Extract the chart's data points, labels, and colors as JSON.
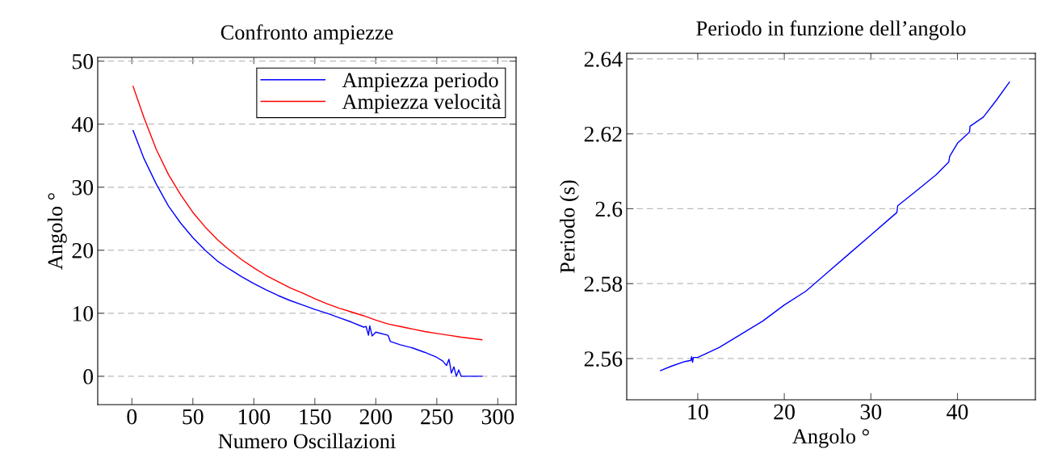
{
  "chart_data": [
    {
      "type": "line",
      "title": "Confronto ampiezze",
      "xlabel": "Numero Oscillazioni",
      "ylabel": "Angolo °",
      "xlim": [
        -28,
        315
      ],
      "ylim": [
        -4.5,
        50.6
      ],
      "xticks": [
        0,
        50,
        100,
        150,
        200,
        250,
        300
      ],
      "yticks": [
        0,
        10,
        20,
        30,
        40,
        50
      ],
      "grid": "y",
      "legend": "top right",
      "series": [
        {
          "name": "Ampiezza periodo",
          "color": "#0000ff",
          "x": [
            1,
            10,
            20,
            30,
            40,
            50,
            60,
            70,
            80,
            90,
            100,
            110,
            120,
            130,
            140,
            150,
            160,
            170,
            180,
            190,
            192,
            194,
            195,
            197,
            200,
            210,
            212,
            220,
            230,
            240,
            250,
            255,
            258,
            260,
            262,
            264,
            266,
            268,
            270,
            287
          ],
          "values": [
            39,
            34.5,
            30.5,
            27,
            24.3,
            22,
            20,
            18.3,
            17,
            15.8,
            14.7,
            13.7,
            12.8,
            12,
            11.3,
            10.6,
            10,
            9.3,
            8.6,
            7.8,
            7.9,
            6.5,
            8,
            6.4,
            7,
            6.5,
            5.5,
            5,
            4.5,
            3.8,
            3,
            2.4,
            1.7,
            2.7,
            0.5,
            1.5,
            0,
            1,
            0,
            0
          ]
        },
        {
          "name": "Ampiezza velocità",
          "color": "#ff0000",
          "x": [
            1,
            10,
            20,
            30,
            40,
            50,
            60,
            70,
            80,
            90,
            100,
            110,
            120,
            130,
            140,
            150,
            160,
            170,
            180,
            190,
            200,
            210,
            220,
            230,
            240,
            250,
            260,
            270,
            287
          ],
          "values": [
            46,
            41,
            36,
            32,
            28.8,
            26,
            23.7,
            21.7,
            20,
            18.5,
            17.2,
            16,
            15,
            14,
            13.2,
            12.3,
            11.5,
            10.8,
            10.2,
            9.6,
            8.9,
            8.3,
            7.9,
            7.5,
            7.1,
            6.8,
            6.5,
            6.2,
            5.8
          ]
        }
      ]
    },
    {
      "type": "line",
      "title": "Periodo in funzione dell’angolo",
      "xlabel": "Angolo °",
      "ylabel": "Periodo (s)",
      "xlim": [
        1.8,
        49
      ],
      "ylim": [
        2.549,
        2.6415
      ],
      "xticks": [
        10,
        20,
        30,
        40
      ],
      "yticks": [
        2.56,
        2.58,
        2.6,
        2.62,
        2.64
      ],
      "grid": "y",
      "series": [
        {
          "color": "#0000ff",
          "x": [
            5.7,
            7,
            8.5,
            9.2,
            9.3,
            9.4,
            9.5,
            10,
            12.5,
            15,
            17.5,
            20,
            22.5,
            25,
            27.5,
            30,
            32,
            33,
            33.1,
            35,
            37.5,
            39,
            39.1,
            40,
            41.4,
            41.45,
            43,
            44.5,
            46
          ],
          "values": [
            2.5568,
            2.558,
            2.5592,
            2.5595,
            2.5605,
            2.559,
            2.5603,
            2.5603,
            2.563,
            2.5665,
            2.57,
            2.5743,
            2.578,
            2.583,
            2.588,
            2.593,
            2.597,
            2.599,
            2.6008,
            2.6043,
            2.609,
            2.6125,
            2.614,
            2.6175,
            2.6205,
            2.622,
            2.6245,
            2.629,
            2.6338
          ]
        }
      ]
    }
  ]
}
